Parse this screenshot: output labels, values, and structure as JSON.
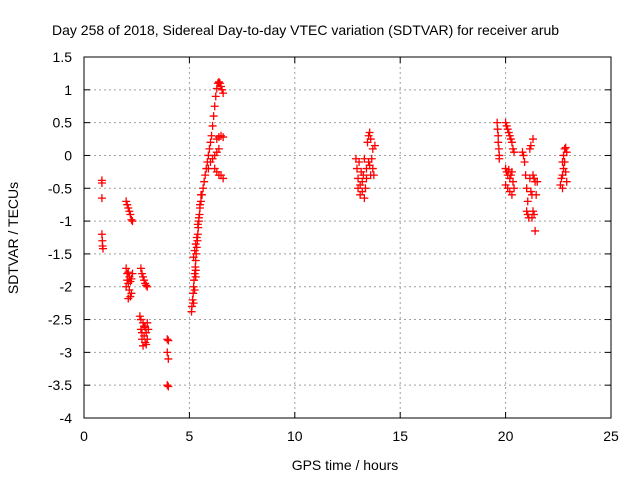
{
  "chart_data": {
    "type": "scatter",
    "title": "Day 258 of 2018, Sidereal Day-to-day VTEC variation (SDTVAR) for receiver arub",
    "xlabel": "GPS time / hours",
    "ylabel": "SDTVAR / TECUs",
    "xlim": [
      0,
      25
    ],
    "ylim": [
      -4,
      1.5
    ],
    "xticks": [
      0,
      5,
      10,
      15,
      20,
      25
    ],
    "yticks": [
      -4,
      -3.5,
      -3,
      -2.5,
      -2,
      -1.5,
      -1,
      -0.5,
      0,
      0.5,
      1,
      1.5
    ],
    "grid": true,
    "marker": "+",
    "colors": {
      "marker": "#ff0000",
      "axis": "#000000",
      "grid": "#a0a0a0"
    },
    "series": [
      {
        "name": "SDTVAR",
        "points": [
          [
            0.85,
            -0.38
          ],
          [
            0.85,
            -0.42
          ],
          [
            0.85,
            -0.65
          ],
          [
            0.85,
            -1.2
          ],
          [
            0.87,
            -1.3
          ],
          [
            0.88,
            -1.38
          ],
          [
            0.9,
            -1.42
          ],
          [
            2.0,
            -0.7
          ],
          [
            2.05,
            -0.75
          ],
          [
            2.1,
            -0.8
          ],
          [
            2.15,
            -0.85
          ],
          [
            2.2,
            -0.9
          ],
          [
            2.25,
            -0.98
          ],
          [
            2.3,
            -1.0
          ],
          [
            2.0,
            -1.72
          ],
          [
            2.05,
            -1.8
          ],
          [
            2.05,
            -1.9
          ],
          [
            2.1,
            -1.78
          ],
          [
            2.1,
            -1.95
          ],
          [
            2.15,
            -2.05
          ],
          [
            2.15,
            -1.85
          ],
          [
            2.2,
            -2.15
          ],
          [
            2.2,
            -1.92
          ],
          [
            2.25,
            -1.88
          ],
          [
            2.25,
            -2.1
          ],
          [
            2.3,
            -1.8
          ],
          [
            2.1,
            -2.18
          ],
          [
            2.0,
            -2.0
          ],
          [
            2.7,
            -1.72
          ],
          [
            2.75,
            -1.8
          ],
          [
            2.8,
            -1.85
          ],
          [
            2.85,
            -1.9
          ],
          [
            2.9,
            -1.95
          ],
          [
            2.95,
            -1.98
          ],
          [
            3.0,
            -2.0
          ],
          [
            2.65,
            -2.45
          ],
          [
            2.7,
            -2.5
          ],
          [
            2.7,
            -2.65
          ],
          [
            2.75,
            -2.7
          ],
          [
            2.75,
            -2.8
          ],
          [
            2.8,
            -2.55
          ],
          [
            2.8,
            -2.9
          ],
          [
            2.85,
            -2.6
          ],
          [
            2.85,
            -2.75
          ],
          [
            2.9,
            -2.85
          ],
          [
            2.9,
            -2.62
          ],
          [
            2.95,
            -2.7
          ],
          [
            2.95,
            -2.88
          ],
          [
            3.0,
            -2.55
          ],
          [
            3.0,
            -2.8
          ],
          [
            3.05,
            -2.65
          ],
          [
            3.95,
            -2.8
          ],
          [
            4.0,
            -2.82
          ],
          [
            3.95,
            -3.0
          ],
          [
            4.0,
            -3.1
          ],
          [
            3.95,
            -3.5
          ],
          [
            4.0,
            -3.52
          ],
          [
            5.1,
            -2.38
          ],
          [
            5.12,
            -2.3
          ],
          [
            5.15,
            -2.2
          ],
          [
            5.18,
            -2.1
          ],
          [
            5.2,
            -2.0
          ],
          [
            5.22,
            -1.9
          ],
          [
            5.25,
            -1.8
          ],
          [
            5.28,
            -1.7
          ],
          [
            5.3,
            -1.6
          ],
          [
            5.32,
            -1.5
          ],
          [
            5.35,
            -1.4
          ],
          [
            5.38,
            -1.3
          ],
          [
            5.4,
            -1.2
          ],
          [
            5.42,
            -1.1
          ],
          [
            5.45,
            -1.0
          ],
          [
            5.48,
            -0.9
          ],
          [
            5.5,
            -0.8
          ],
          [
            5.55,
            -0.7
          ],
          [
            5.6,
            -0.6
          ],
          [
            5.65,
            -0.5
          ],
          [
            5.7,
            -0.4
          ],
          [
            5.75,
            -0.3
          ],
          [
            5.8,
            -0.2
          ],
          [
            5.85,
            -0.1
          ],
          [
            5.9,
            0.0
          ],
          [
            5.95,
            0.1
          ],
          [
            6.0,
            0.2
          ],
          [
            6.05,
            0.3
          ],
          [
            6.1,
            0.45
          ],
          [
            6.15,
            0.6
          ],
          [
            6.2,
            0.75
          ],
          [
            6.25,
            0.9
          ],
          [
            6.3,
            1.02
          ],
          [
            6.35,
            1.1
          ],
          [
            6.4,
            1.12
          ],
          [
            6.45,
            1.1
          ],
          [
            6.5,
            1.05
          ],
          [
            6.55,
            1.0
          ],
          [
            6.6,
            0.95
          ],
          [
            5.2,
            -1.55
          ],
          [
            5.25,
            -1.45
          ],
          [
            5.3,
            -1.35
          ],
          [
            5.35,
            -1.25
          ],
          [
            5.4,
            -1.05
          ],
          [
            5.45,
            -0.95
          ],
          [
            5.5,
            -0.75
          ],
          [
            5.55,
            -0.6
          ],
          [
            5.2,
            -2.25
          ],
          [
            5.25,
            -2.05
          ],
          [
            5.3,
            -1.85
          ],
          [
            5.3,
            -1.75
          ],
          [
            5.9,
            -0.2
          ],
          [
            6.0,
            -0.1
          ],
          [
            6.1,
            -0.05
          ],
          [
            6.2,
            0.0
          ],
          [
            6.3,
            0.05
          ],
          [
            6.4,
            0.1
          ],
          [
            6.3,
            0.25
          ],
          [
            6.4,
            0.28
          ],
          [
            6.5,
            0.3
          ],
          [
            6.6,
            0.28
          ],
          [
            6.2,
            -0.2
          ],
          [
            6.3,
            -0.25
          ],
          [
            6.4,
            -0.3
          ],
          [
            6.5,
            -0.3
          ],
          [
            6.6,
            -0.35
          ],
          [
            12.9,
            -0.05
          ],
          [
            12.95,
            -0.2
          ],
          [
            13.0,
            -0.35
          ],
          [
            13.0,
            -0.5
          ],
          [
            13.05,
            -0.1
          ],
          [
            13.1,
            -0.45
          ],
          [
            13.1,
            -0.6
          ],
          [
            13.15,
            -0.25
          ],
          [
            13.2,
            -0.55
          ],
          [
            13.2,
            -0.4
          ],
          [
            13.25,
            -0.3
          ],
          [
            13.3,
            -0.65
          ],
          [
            13.3,
            -0.05
          ],
          [
            13.35,
            -0.5
          ],
          [
            13.4,
            -0.2
          ],
          [
            13.45,
            0.2
          ],
          [
            13.5,
            0.3
          ],
          [
            13.5,
            -0.1
          ],
          [
            13.55,
            0.35
          ],
          [
            13.6,
            0.25
          ],
          [
            13.6,
            -0.3
          ],
          [
            13.65,
            -0.05
          ],
          [
            13.7,
            0.1
          ],
          [
            13.7,
            -0.2
          ],
          [
            13.75,
            -0.3
          ],
          [
            13.8,
            0.15
          ],
          [
            13.4,
            -0.35
          ],
          [
            13.55,
            -0.15
          ],
          [
            19.6,
            0.5
          ],
          [
            19.62,
            0.4
          ],
          [
            19.65,
            0.3
          ],
          [
            19.65,
            0.2
          ],
          [
            19.68,
            0.1
          ],
          [
            19.7,
            0.0
          ],
          [
            19.7,
            -0.05
          ],
          [
            20.0,
            0.5
          ],
          [
            20.05,
            0.45
          ],
          [
            20.1,
            0.4
          ],
          [
            20.15,
            0.35
          ],
          [
            20.2,
            0.3
          ],
          [
            20.25,
            0.25
          ],
          [
            20.3,
            0.2
          ],
          [
            20.35,
            0.1
          ],
          [
            20.4,
            0.05
          ],
          [
            20.0,
            -0.2
          ],
          [
            20.05,
            -0.25
          ],
          [
            20.1,
            -0.3
          ],
          [
            20.15,
            -0.22
          ],
          [
            20.2,
            -0.35
          ],
          [
            20.25,
            -0.3
          ],
          [
            20.3,
            -0.25
          ],
          [
            20.35,
            -0.4
          ],
          [
            20.1,
            -0.5
          ],
          [
            20.2,
            -0.55
          ],
          [
            20.3,
            -0.6
          ],
          [
            20.0,
            -0.45
          ],
          [
            20.4,
            -0.5
          ],
          [
            20.8,
            0.05
          ],
          [
            20.85,
            0.0
          ],
          [
            20.9,
            -0.1
          ],
          [
            20.95,
            -0.3
          ],
          [
            21.0,
            -0.5
          ],
          [
            21.05,
            -0.7
          ],
          [
            21.0,
            -0.85
          ],
          [
            21.05,
            -0.9
          ],
          [
            21.1,
            -0.95
          ],
          [
            21.15,
            0.1
          ],
          [
            21.15,
            -0.35
          ],
          [
            21.2,
            0.15
          ],
          [
            21.2,
            -0.55
          ],
          [
            21.25,
            -0.6
          ],
          [
            21.3,
            0.25
          ],
          [
            21.3,
            -0.3
          ],
          [
            21.35,
            -0.35
          ],
          [
            21.4,
            -0.4
          ],
          [
            21.3,
            -0.85
          ],
          [
            21.35,
            -0.9
          ],
          [
            21.4,
            -1.15
          ],
          [
            21.25,
            -0.95
          ],
          [
            21.45,
            -0.6
          ],
          [
            21.5,
            -0.4
          ],
          [
            22.6,
            -0.45
          ],
          [
            22.65,
            -0.35
          ],
          [
            22.7,
            -0.3
          ],
          [
            22.7,
            -0.1
          ],
          [
            22.75,
            -0.2
          ],
          [
            22.75,
            0.0
          ],
          [
            22.8,
            -0.1
          ],
          [
            22.8,
            0.1
          ],
          [
            22.85,
            0.12
          ],
          [
            22.85,
            -0.25
          ],
          [
            22.9,
            -0.4
          ],
          [
            22.9,
            0.05
          ],
          [
            22.7,
            -0.5
          ]
        ]
      }
    ]
  }
}
